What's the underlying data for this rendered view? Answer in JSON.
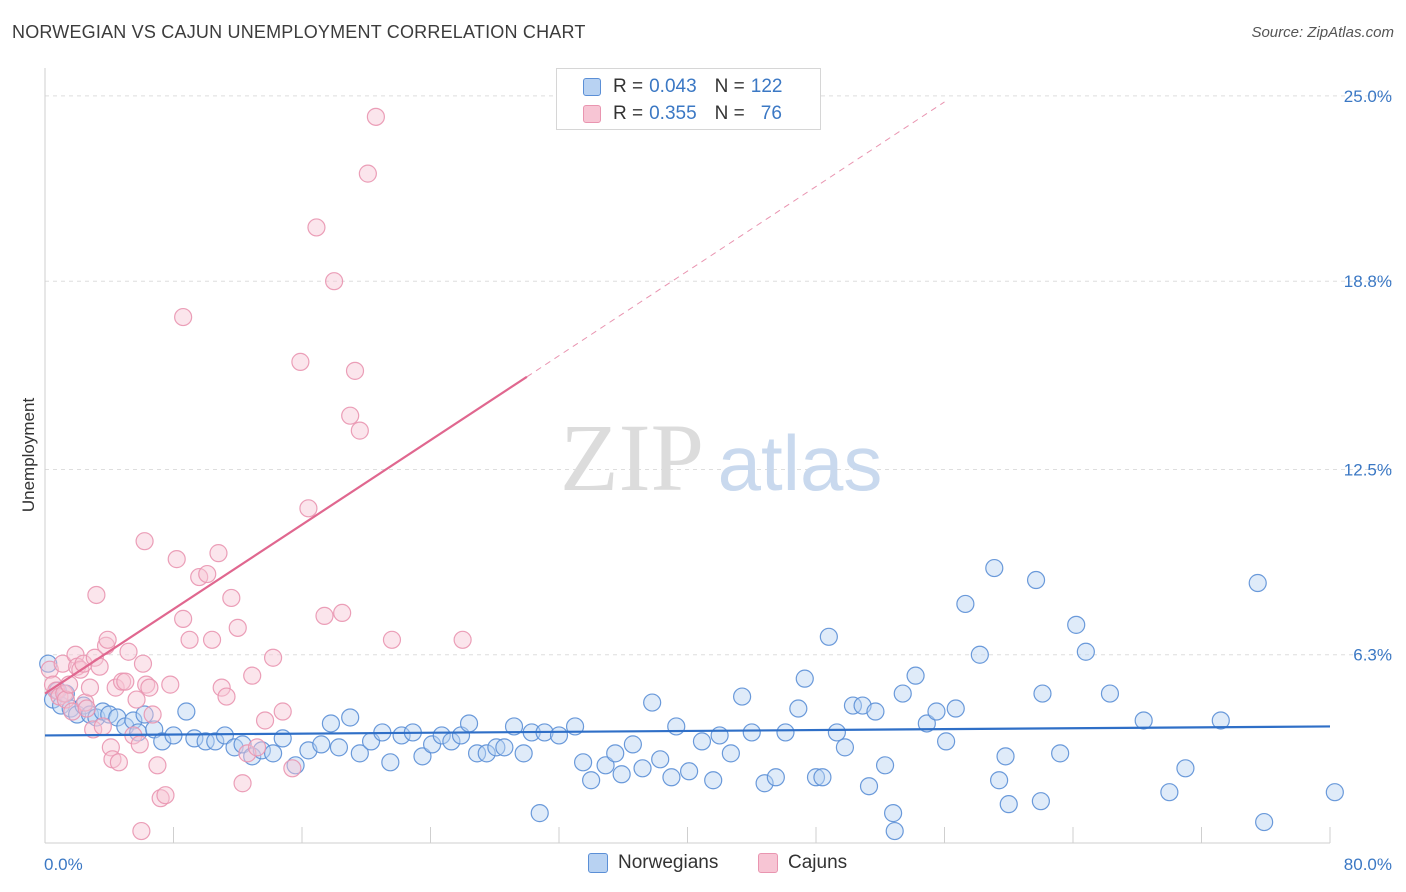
{
  "title": "NORWEGIAN VS CAJUN UNEMPLOYMENT CORRELATION CHART",
  "source": "Source: ZipAtlas.com",
  "watermark": {
    "zip": "ZIP",
    "atlas": "atlas"
  },
  "colors": {
    "blue_fill": "#b8d2f2",
    "blue_stroke": "#5b8fd6",
    "blue_line": "#2f6fc7",
    "pink_fill": "#f7c5d4",
    "pink_stroke": "#e995b0",
    "pink_line": "#e0678f",
    "axis_text": "#3b78c4",
    "grid": "#dedede"
  },
  "legend": {
    "rows": [
      {
        "r_label": "R =",
        "r_value": "0.043",
        "n_label": "N =",
        "n_value": "122"
      },
      {
        "r_label": "R =",
        "r_value": "0.355",
        "n_label": "N =",
        "n_value": "76"
      }
    ]
  },
  "bottom_legend": {
    "norwegians": "Norwegians",
    "cajuns": "Cajuns"
  },
  "chart_data": {
    "type": "scatter",
    "xlabel": "",
    "ylabel": "Unemployment",
    "xlim": [
      0,
      80
    ],
    "ylim": [
      0,
      25.6
    ],
    "x_tick_labels": {
      "min": "0.0%",
      "max": "80.0%"
    },
    "y_ticks": [
      {
        "value": 6.3,
        "label": "6.3%"
      },
      {
        "value": 12.5,
        "label": "12.5%"
      },
      {
        "value": 18.8,
        "label": "18.8%"
      },
      {
        "value": 25.0,
        "label": "25.0%"
      }
    ],
    "series": [
      {
        "name": "Norwegians",
        "color": "blue",
        "trend": {
          "x0": 0,
          "y0": 3.6,
          "x1": 80,
          "y1": 3.9
        },
        "points": [
          [
            0.2,
            6.0
          ],
          [
            0.5,
            4.8
          ],
          [
            0.8,
            5.1
          ],
          [
            1.0,
            4.6
          ],
          [
            1.3,
            5.0
          ],
          [
            1.6,
            4.5
          ],
          [
            2.0,
            4.3
          ],
          [
            2.4,
            4.6
          ],
          [
            2.8,
            4.3
          ],
          [
            3.2,
            4.2
          ],
          [
            3.6,
            4.4
          ],
          [
            4.0,
            4.3
          ],
          [
            4.5,
            4.2
          ],
          [
            5.0,
            3.9
          ],
          [
            5.5,
            4.1
          ],
          [
            5.8,
            3.7
          ],
          [
            6.2,
            4.3
          ],
          [
            6.8,
            3.8
          ],
          [
            7.3,
            3.4
          ],
          [
            8.0,
            3.6
          ],
          [
            8.8,
            4.4
          ],
          [
            9.3,
            3.5
          ],
          [
            10.0,
            3.4
          ],
          [
            10.6,
            3.4
          ],
          [
            11.2,
            3.6
          ],
          [
            11.8,
            3.2
          ],
          [
            12.3,
            3.3
          ],
          [
            12.9,
            2.9
          ],
          [
            13.5,
            3.1
          ],
          [
            14.2,
            3.0
          ],
          [
            14.8,
            3.5
          ],
          [
            15.6,
            2.6
          ],
          [
            16.4,
            3.1
          ],
          [
            17.2,
            3.3
          ],
          [
            17.8,
            4.0
          ],
          [
            18.3,
            3.2
          ],
          [
            19.0,
            4.2
          ],
          [
            19.6,
            3.0
          ],
          [
            20.3,
            3.4
          ],
          [
            21.0,
            3.7
          ],
          [
            21.5,
            2.7
          ],
          [
            22.2,
            3.6
          ],
          [
            22.9,
            3.7
          ],
          [
            23.5,
            2.9
          ],
          [
            24.1,
            3.3
          ],
          [
            24.7,
            3.6
          ],
          [
            25.3,
            3.4
          ],
          [
            25.9,
            3.6
          ],
          [
            26.4,
            4.0
          ],
          [
            26.9,
            3.0
          ],
          [
            27.5,
            3.0
          ],
          [
            28.1,
            3.2
          ],
          [
            28.6,
            3.2
          ],
          [
            29.2,
            3.9
          ],
          [
            29.8,
            3.0
          ],
          [
            30.3,
            3.7
          ],
          [
            30.8,
            1.0
          ],
          [
            31.1,
            3.7
          ],
          [
            32.0,
            3.6
          ],
          [
            33.0,
            3.9
          ],
          [
            33.5,
            2.7
          ],
          [
            34.0,
            2.1
          ],
          [
            34.9,
            2.6
          ],
          [
            35.5,
            3.0
          ],
          [
            35.9,
            2.3
          ],
          [
            36.6,
            3.3
          ],
          [
            37.2,
            2.5
          ],
          [
            37.8,
            4.7
          ],
          [
            38.3,
            2.8
          ],
          [
            39.0,
            2.2
          ],
          [
            39.3,
            3.9
          ],
          [
            40.1,
            2.4
          ],
          [
            40.9,
            3.4
          ],
          [
            41.6,
            2.1
          ],
          [
            42.0,
            3.6
          ],
          [
            42.7,
            3.0
          ],
          [
            43.4,
            4.9
          ],
          [
            44.0,
            3.7
          ],
          [
            44.8,
            2.0
          ],
          [
            45.5,
            2.2
          ],
          [
            46.1,
            3.7
          ],
          [
            46.9,
            4.5
          ],
          [
            47.3,
            5.5
          ],
          [
            48.0,
            2.2
          ],
          [
            48.4,
            2.2
          ],
          [
            48.8,
            6.9
          ],
          [
            49.3,
            3.7
          ],
          [
            49.8,
            3.2
          ],
          [
            50.3,
            4.6
          ],
          [
            50.9,
            4.6
          ],
          [
            51.3,
            1.9
          ],
          [
            51.7,
            4.4
          ],
          [
            52.3,
            2.6
          ],
          [
            52.8,
            1.0
          ],
          [
            52.9,
            0.4
          ],
          [
            53.4,
            5.0
          ],
          [
            54.2,
            5.6
          ],
          [
            54.9,
            4.0
          ],
          [
            55.5,
            4.4
          ],
          [
            56.1,
            3.4
          ],
          [
            56.7,
            4.5
          ],
          [
            57.3,
            8.0
          ],
          [
            58.2,
            6.3
          ],
          [
            59.1,
            9.2
          ],
          [
            59.4,
            2.1
          ],
          [
            59.8,
            2.9
          ],
          [
            60.0,
            1.3
          ],
          [
            61.7,
            8.8
          ],
          [
            62.0,
            1.4
          ],
          [
            62.1,
            5.0
          ],
          [
            63.2,
            3.0
          ],
          [
            64.2,
            7.3
          ],
          [
            64.8,
            6.4
          ],
          [
            66.3,
            5.0
          ],
          [
            68.4,
            4.1
          ],
          [
            70.0,
            1.7
          ],
          [
            71.0,
            2.5
          ],
          [
            73.2,
            4.1
          ],
          [
            75.9,
            0.7
          ],
          [
            75.5,
            8.7
          ],
          [
            80.3,
            1.7
          ]
        ]
      },
      {
        "name": "Cajuns",
        "color": "pink",
        "trend": {
          "x0": 0,
          "y0": 5.0,
          "x1": 30,
          "y1": 15.6,
          "dash_to": {
            "x": 56,
            "y": 24.8
          }
        },
        "points": [
          [
            0.3,
            5.8
          ],
          [
            0.5,
            5.3
          ],
          [
            0.7,
            5.1
          ],
          [
            0.9,
            4.9
          ],
          [
            1.1,
            6.0
          ],
          [
            1.2,
            5.0
          ],
          [
            1.3,
            4.8
          ],
          [
            1.5,
            5.3
          ],
          [
            1.7,
            4.4
          ],
          [
            1.9,
            6.3
          ],
          [
            2.0,
            5.9
          ],
          [
            2.2,
            5.8
          ],
          [
            2.4,
            6.0
          ],
          [
            2.5,
            4.7
          ],
          [
            2.6,
            4.5
          ],
          [
            2.8,
            5.2
          ],
          [
            3.0,
            3.8
          ],
          [
            3.1,
            6.2
          ],
          [
            3.2,
            8.3
          ],
          [
            3.4,
            5.9
          ],
          [
            3.6,
            3.9
          ],
          [
            3.8,
            6.6
          ],
          [
            3.9,
            6.8
          ],
          [
            4.1,
            3.2
          ],
          [
            4.2,
            2.8
          ],
          [
            4.4,
            5.2
          ],
          [
            4.6,
            2.7
          ],
          [
            4.8,
            5.4
          ],
          [
            5.0,
            5.4
          ],
          [
            5.2,
            6.4
          ],
          [
            5.5,
            3.6
          ],
          [
            5.7,
            4.8
          ],
          [
            5.9,
            3.3
          ],
          [
            6.1,
            6.0
          ],
          [
            6.3,
            5.3
          ],
          [
            6.5,
            5.2
          ],
          [
            6.7,
            4.3
          ],
          [
            7.0,
            2.6
          ],
          [
            7.2,
            1.5
          ],
          [
            7.5,
            1.6
          ],
          [
            7.8,
            5.3
          ],
          [
            8.2,
            9.5
          ],
          [
            8.6,
            7.5
          ],
          [
            9.0,
            6.8
          ],
          [
            9.6,
            8.9
          ],
          [
            10.1,
            9.0
          ],
          [
            10.4,
            6.8
          ],
          [
            10.8,
            9.7
          ],
          [
            11.0,
            5.2
          ],
          [
            11.3,
            4.9
          ],
          [
            11.6,
            8.2
          ],
          [
            12.0,
            7.2
          ],
          [
            12.3,
            2.0
          ],
          [
            12.6,
            3.0
          ],
          [
            12.9,
            5.6
          ],
          [
            13.2,
            3.2
          ],
          [
            13.7,
            4.1
          ],
          [
            14.2,
            6.2
          ],
          [
            14.8,
            4.4
          ],
          [
            15.4,
            2.5
          ],
          [
            15.9,
            16.1
          ],
          [
            16.4,
            11.2
          ],
          [
            16.9,
            20.6
          ],
          [
            17.4,
            7.6
          ],
          [
            18.0,
            18.8
          ],
          [
            18.5,
            7.7
          ],
          [
            19.0,
            14.3
          ],
          [
            19.3,
            15.8
          ],
          [
            19.6,
            13.8
          ],
          [
            20.1,
            22.4
          ],
          [
            20.6,
            24.3
          ],
          [
            21.6,
            6.8
          ],
          [
            26.0,
            6.8
          ],
          [
            6.0,
            0.4
          ],
          [
            6.2,
            10.1
          ],
          [
            8.6,
            17.6
          ]
        ]
      }
    ]
  }
}
